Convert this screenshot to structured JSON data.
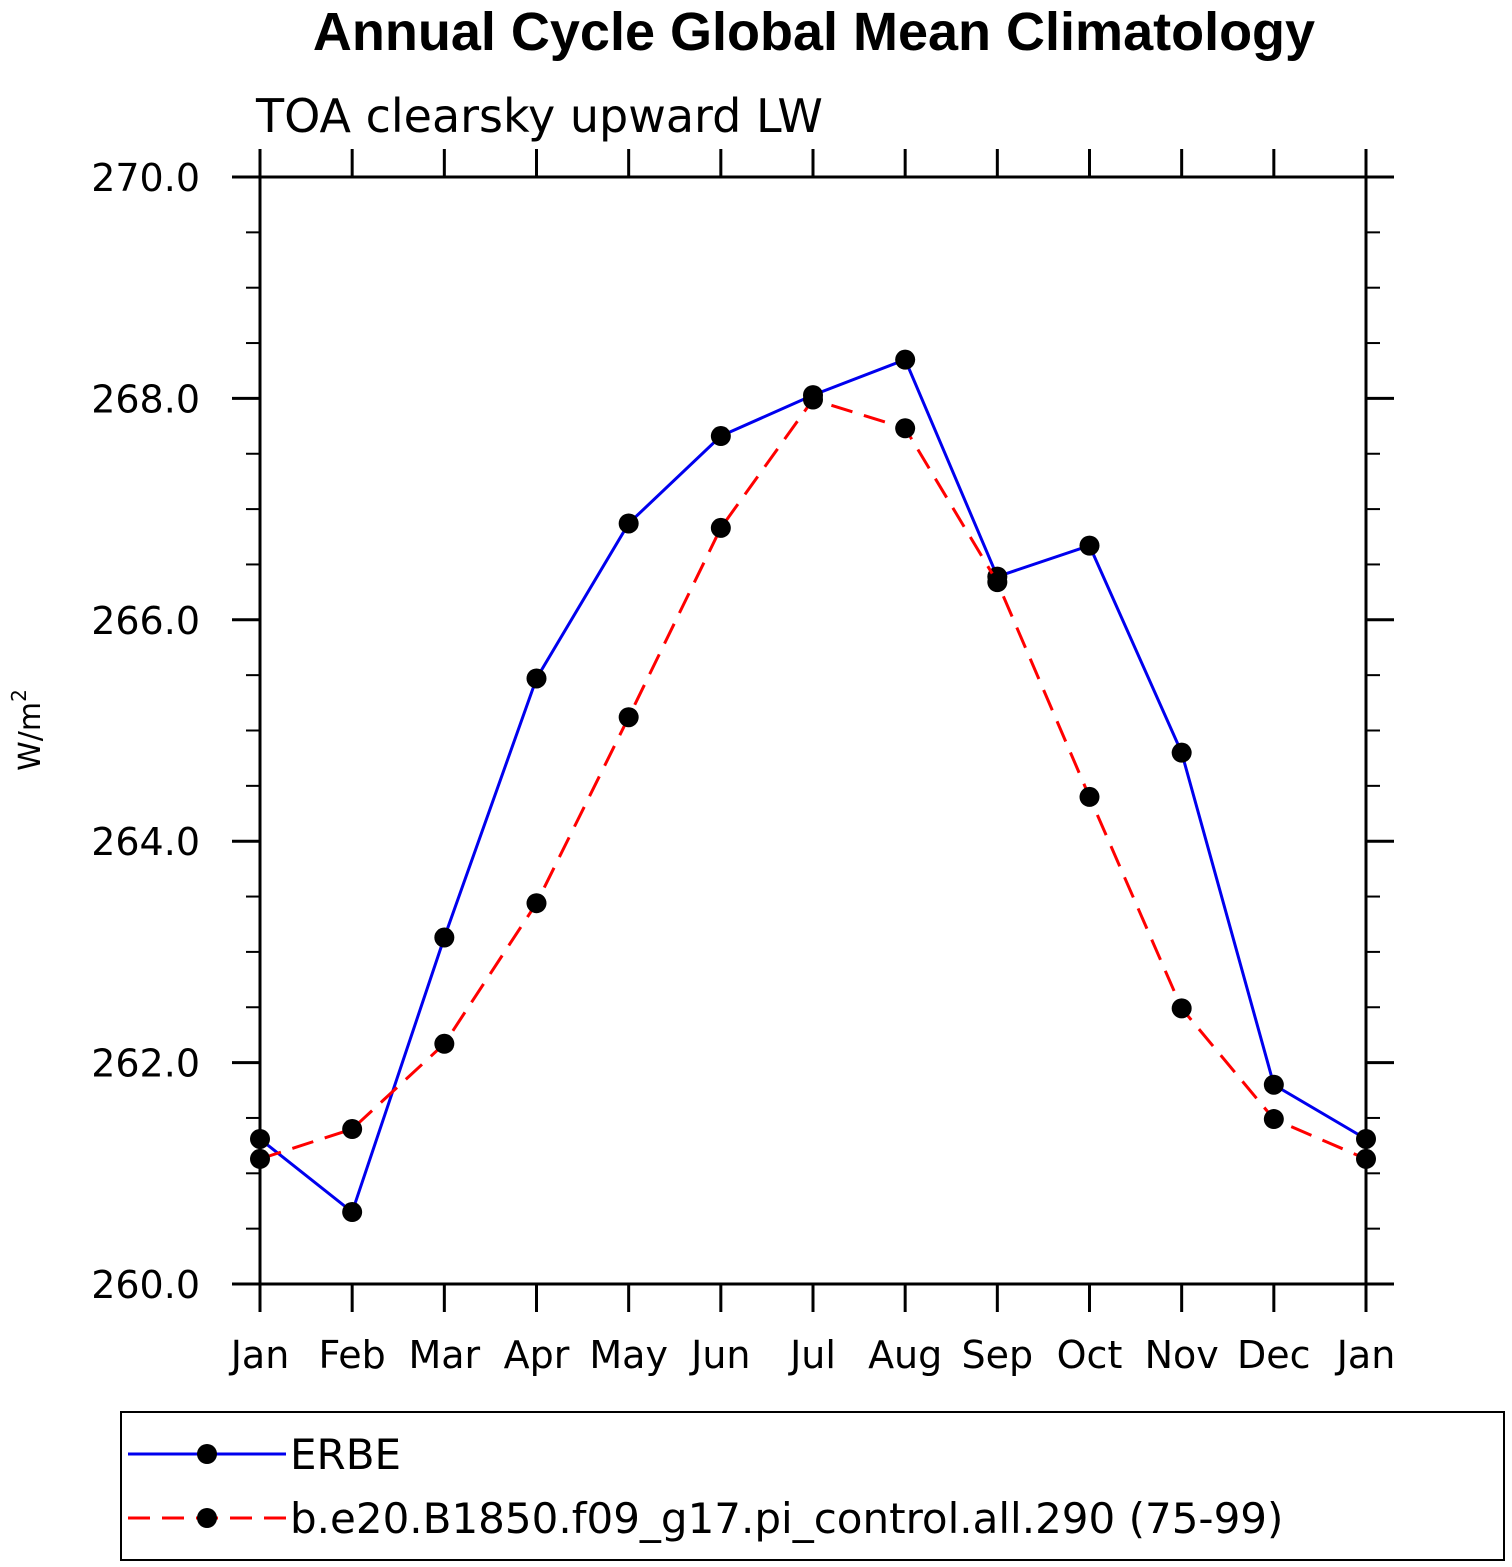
{
  "chart_data": {
    "type": "line",
    "title": "Annual Cycle Global Mean Climatology",
    "subtitle": "TOA clearsky upward LW",
    "ylabel": "W/m",
    "ylabel_superscript": "2",
    "xlabel": "",
    "categories": [
      "Jan",
      "Feb",
      "Mar",
      "Apr",
      "May",
      "Jun",
      "Jul",
      "Aug",
      "Sep",
      "Oct",
      "Nov",
      "Dec",
      "Jan"
    ],
    "ylim": [
      260.0,
      270.0
    ],
    "yticks": [
      "260.0",
      "262.0",
      "264.0",
      "266.0",
      "268.0",
      "270.0"
    ],
    "grid": false,
    "legend_position": "bottom",
    "series": [
      {
        "name": "ERBE",
        "color": "#0000ee",
        "line_style": "solid",
        "marker": "filled-circle",
        "values": [
          261.31,
          260.65,
          263.13,
          265.47,
          266.87,
          267.66,
          268.03,
          268.35,
          266.39,
          266.67,
          264.8,
          261.8,
          261.31
        ]
      },
      {
        "name": "b.e20.B1850.f09_g17.pi_control.all.290 (75-99)",
        "color": "#ff0000",
        "line_style": "dashed",
        "marker": "filled-circle",
        "values": [
          261.13,
          261.4,
          262.17,
          263.44,
          265.12,
          266.83,
          267.99,
          267.73,
          266.34,
          264.4,
          262.49,
          261.49,
          261.13
        ]
      }
    ]
  }
}
